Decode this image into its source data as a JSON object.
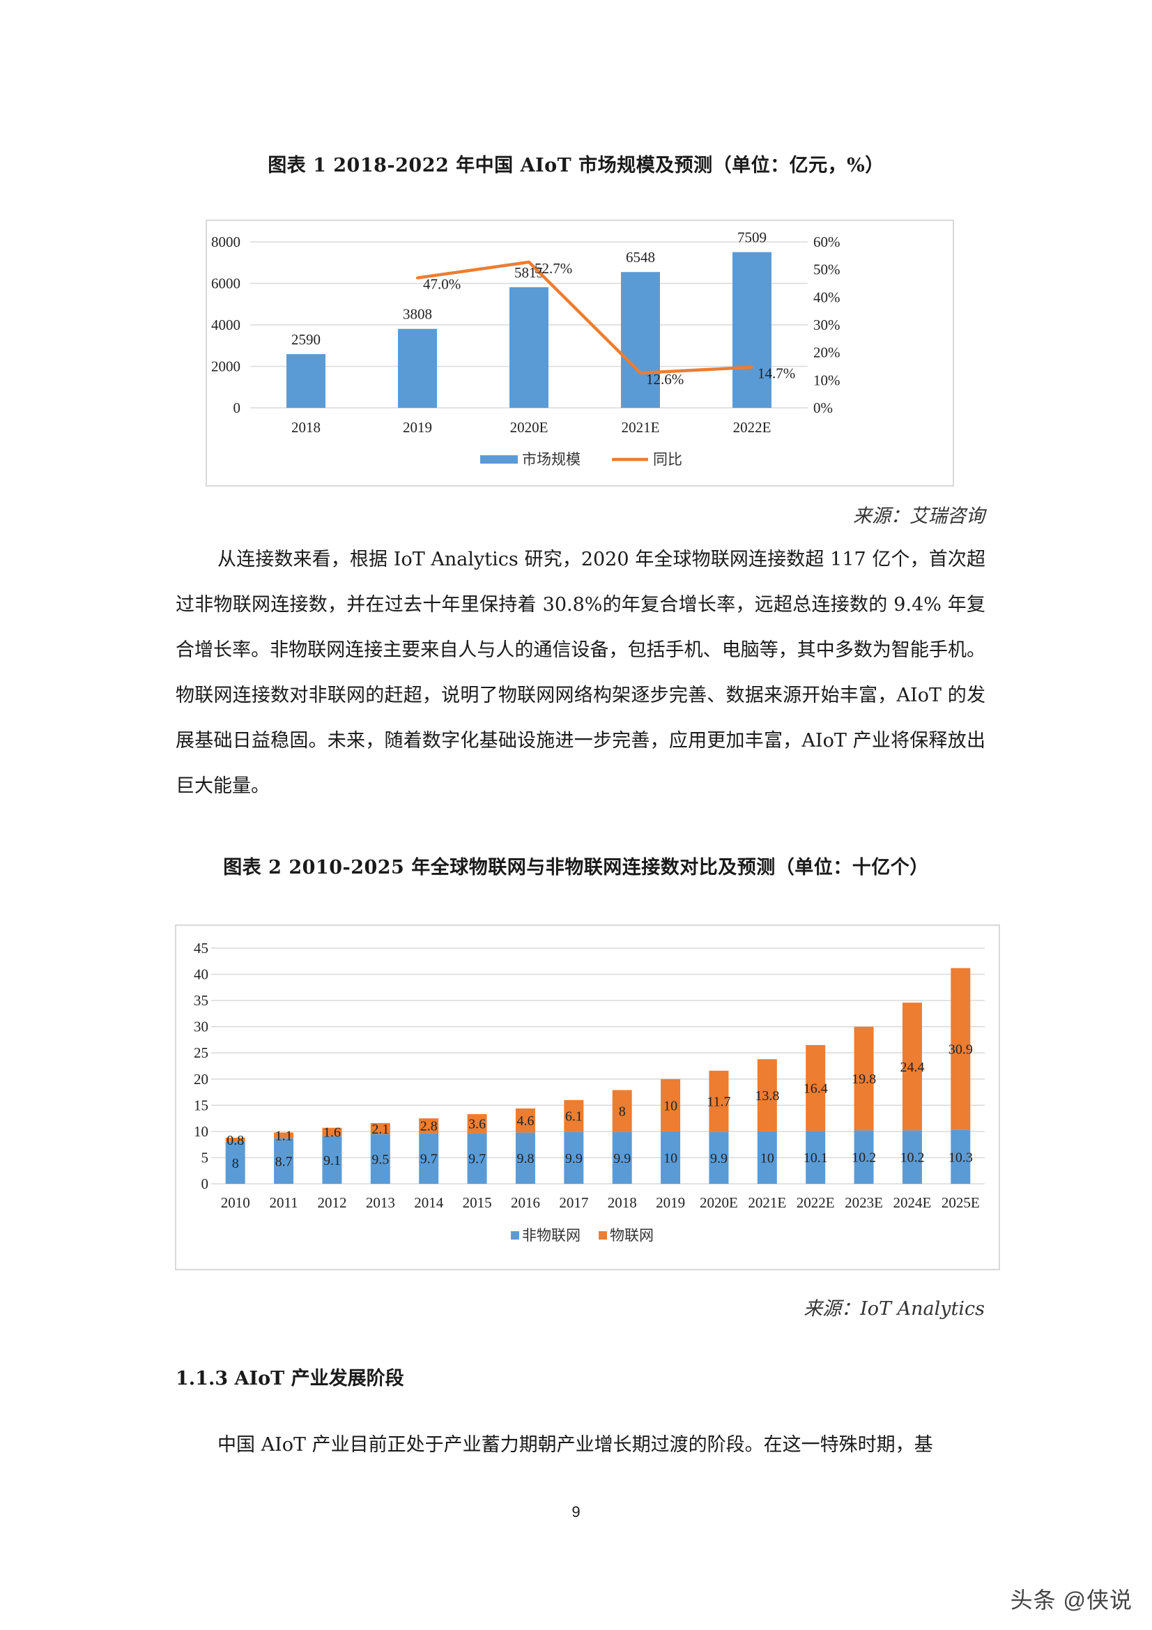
{
  "figure1": {
    "title": "图表 1   2018-2022 年中国 AIoT 市场规模及预测（单位：亿元，%）",
    "source": "来源：艾瑞咨询",
    "legend": {
      "bar": "市场规模",
      "line": "同比"
    }
  },
  "figure2": {
    "title": "图表 2   2010-2025 年全球物联网与非物联网连接数对比及预测（单位：十亿个）",
    "source": "来源：IoT Analytics",
    "legend": {
      "s1": "非物联网",
      "s2": "物联网"
    }
  },
  "paragraph1": "从连接数来看，根据 IoT Analytics 研究，2020 年全球物联网连接数超 117 亿个，首次超过非物联网连接数，并在过去十年里保持着 30.8%的年复合增长率，远超总连接数的 9.4% 年复合增长率。非物联网连接主要来自人与人的通信设备，包括手机、电脑等，其中多数为智能手机。物联网连接数对非联网的赶超，说明了物联网网络构架逐步完善、数据来源开始丰富，AIoT 的发展基础日益稳固。未来，随着数字化基础设施进一步完善，应用更加丰富，AIoT 产业将保释放出巨大能量。",
  "section_heading": "1.1.3 AIoT 产业发展阶段",
  "paragraph2": "中国 AIoT 产业目前正处于产业蓄力期朝产业增长期过渡的阶段。在这一特殊时期，基",
  "page_number": "9",
  "watermark": "头条 @侠说",
  "colors": {
    "bar_blue": "#5b9bd5",
    "line_orange": "#ed7d31",
    "grid": "#d9d9d9"
  },
  "chart_data": [
    {
      "type": "bar",
      "categories": [
        "2018",
        "2019",
        "2020E",
        "2021E",
        "2022E"
      ],
      "series": [
        {
          "name": "市场规模",
          "values": [
            2590,
            3808,
            5815,
            6548,
            7509
          ],
          "axis": "left",
          "kind": "bar",
          "labels": [
            "2590",
            "3808",
            "5815",
            "6548",
            "7509"
          ]
        },
        {
          "name": "同比",
          "values": [
            null,
            47.0,
            52.7,
            12.6,
            14.7
          ],
          "axis": "right",
          "kind": "line",
          "labels": [
            "",
            "47.0%",
            "52.7%",
            "12.6%",
            "14.7%"
          ]
        }
      ],
      "ylim": [
        0,
        8000
      ],
      "yticks": [
        "0",
        "2000",
        "4000",
        "6000",
        "8000"
      ],
      "y2lim": [
        0,
        60
      ],
      "y2ticks": [
        "0%",
        "10%",
        "20%",
        "30%",
        "40%",
        "50%",
        "60%"
      ],
      "grid": true,
      "legend_position": "bottom"
    },
    {
      "type": "bar",
      "stacked": true,
      "categories": [
        "2010",
        "2011",
        "2012",
        "2013",
        "2014",
        "2015",
        "2016",
        "2017",
        "2018",
        "2019",
        "2020E",
        "2021E",
        "2022E",
        "2023E",
        "2024E",
        "2025E"
      ],
      "series": [
        {
          "name": "非物联网",
          "values": [
            8,
            8.7,
            9.1,
            9.5,
            9.7,
            9.7,
            9.8,
            9.9,
            9.9,
            10,
            9.9,
            10,
            10.1,
            10.2,
            10.2,
            10.3
          ],
          "labels": [
            "8",
            "8.7",
            "9.1",
            "9.5",
            "9.7",
            "9.7",
            "9.8",
            "9.9",
            "9.9",
            "10",
            "9.9",
            "10",
            "10.1",
            "10.2",
            "10.2",
            "10.3"
          ]
        },
        {
          "name": "物联网",
          "values": [
            0.8,
            1.1,
            1.6,
            2.1,
            2.8,
            3.6,
            4.6,
            6.1,
            8,
            10,
            11.7,
            13.8,
            16.4,
            19.8,
            24.4,
            30.9
          ],
          "labels": [
            "0.8",
            "1.1",
            "1.6",
            "2.1",
            "2.8",
            "3.6",
            "4.6",
            "6.1",
            "8",
            "10",
            "11.7",
            "13.8",
            "16.4",
            "19.8",
            "24.4",
            "30.9"
          ]
        }
      ],
      "ylim": [
        0,
        45
      ],
      "yticks": [
        "0",
        "5",
        "10",
        "15",
        "20",
        "25",
        "30",
        "35",
        "40",
        "45"
      ],
      "grid": true,
      "legend_position": "bottom"
    }
  ]
}
